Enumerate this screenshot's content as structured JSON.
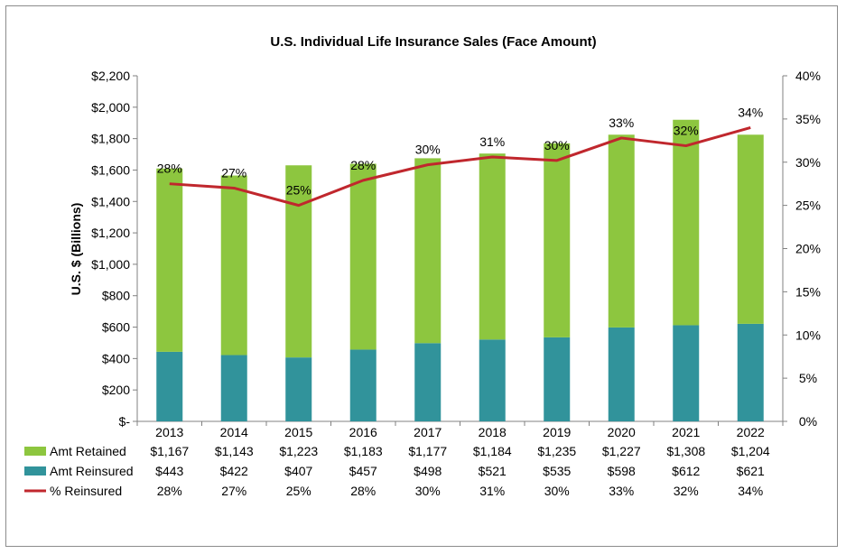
{
  "chart_data": {
    "type": "bar",
    "stacked": true,
    "title": "U.S. Individual Life Insurance Sales (Face Amount)",
    "ylabel": "U.S. $ (Billions)",
    "categories": [
      "2013",
      "2014",
      "2015",
      "2016",
      "2017",
      "2018",
      "2019",
      "2020",
      "2021",
      "2022"
    ],
    "series": [
      {
        "name": "Amt Reinsured",
        "color": "#31939b",
        "values": [
          443,
          422,
          407,
          457,
          498,
          521,
          535,
          598,
          612,
          621
        ],
        "table_values": [
          "$443",
          "$422",
          "$407",
          "$457",
          "$498",
          "$521",
          "$535",
          "$598",
          "$612",
          "$621"
        ]
      },
      {
        "name": "Amt Retained",
        "color": "#8dc63f",
        "values": [
          1167,
          1143,
          1223,
          1183,
          1177,
          1184,
          1235,
          1227,
          1308,
          1204
        ],
        "table_values": [
          "$1,167",
          "$1,143",
          "$1,223",
          "$1,183",
          "$1,177",
          "$1,184",
          "$1,235",
          "$1,227",
          "$1,308",
          "$1,204"
        ]
      }
    ],
    "line_series": {
      "name": "% Reinsured",
      "color": "#c0272d",
      "axis": "secondary",
      "values": [
        27.5,
        27.0,
        25.0,
        27.9,
        29.7,
        30.6,
        30.2,
        32.8,
        31.9,
        34.0
      ],
      "labels": [
        "28%",
        "27%",
        "25%",
        "28%",
        "30%",
        "31%",
        "30%",
        "33%",
        "32%",
        "34%"
      ]
    },
    "ylim": [
      0,
      2200
    ],
    "y_ticks": [
      "$-",
      "$200",
      "$400",
      "$600",
      "$800",
      "$1,000",
      "$1,200",
      "$1,400",
      "$1,600",
      "$1,800",
      "$2,000",
      "$2,200"
    ],
    "y2lim": [
      0,
      40
    ],
    "y2_ticks": [
      "0%",
      "5%",
      "10%",
      "15%",
      "20%",
      "25%",
      "30%",
      "35%",
      "40%"
    ],
    "grid": false,
    "legend": "data-table-below"
  }
}
